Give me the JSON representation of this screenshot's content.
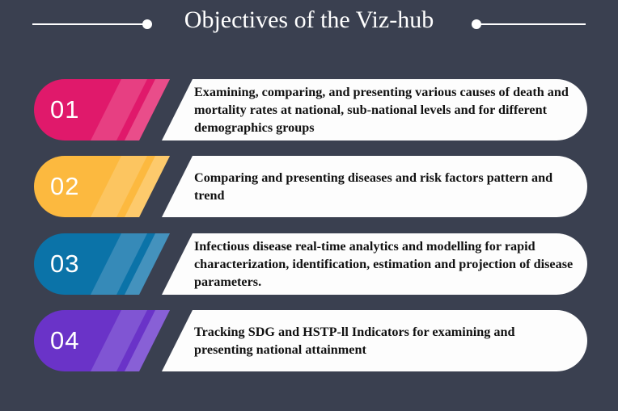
{
  "title": "Objectives of the Viz-hub",
  "items": [
    {
      "number": "01",
      "text": "Examining, comparing, and presenting various causes of death and mortality rates at national, sub-national levels and for different demographics groups",
      "color": "#e0196b",
      "stripe": "#ef6f9f"
    },
    {
      "number": "02",
      "text": "Comparing and presenting diseases and risk factors pattern and trend",
      "color": "#fcb93f",
      "stripe": "#fdd58a"
    },
    {
      "number": "03",
      "text": "Infectious disease real-time analytics and modelling for rapid characterization, identification, estimation and projection of disease parameters.",
      "color": "#0b73a8",
      "stripe": "#6aa6cc"
    },
    {
      "number": "04",
      "text": "Tracking SDG and HSTP-ll Indicators for examining and presenting national attainment",
      "color": "#6a33c8",
      "stripe": "#9c7ee0"
    }
  ],
  "colors": {
    "background": "#3a4050",
    "card": "#fdfdfd",
    "title": "#ffffff"
  }
}
